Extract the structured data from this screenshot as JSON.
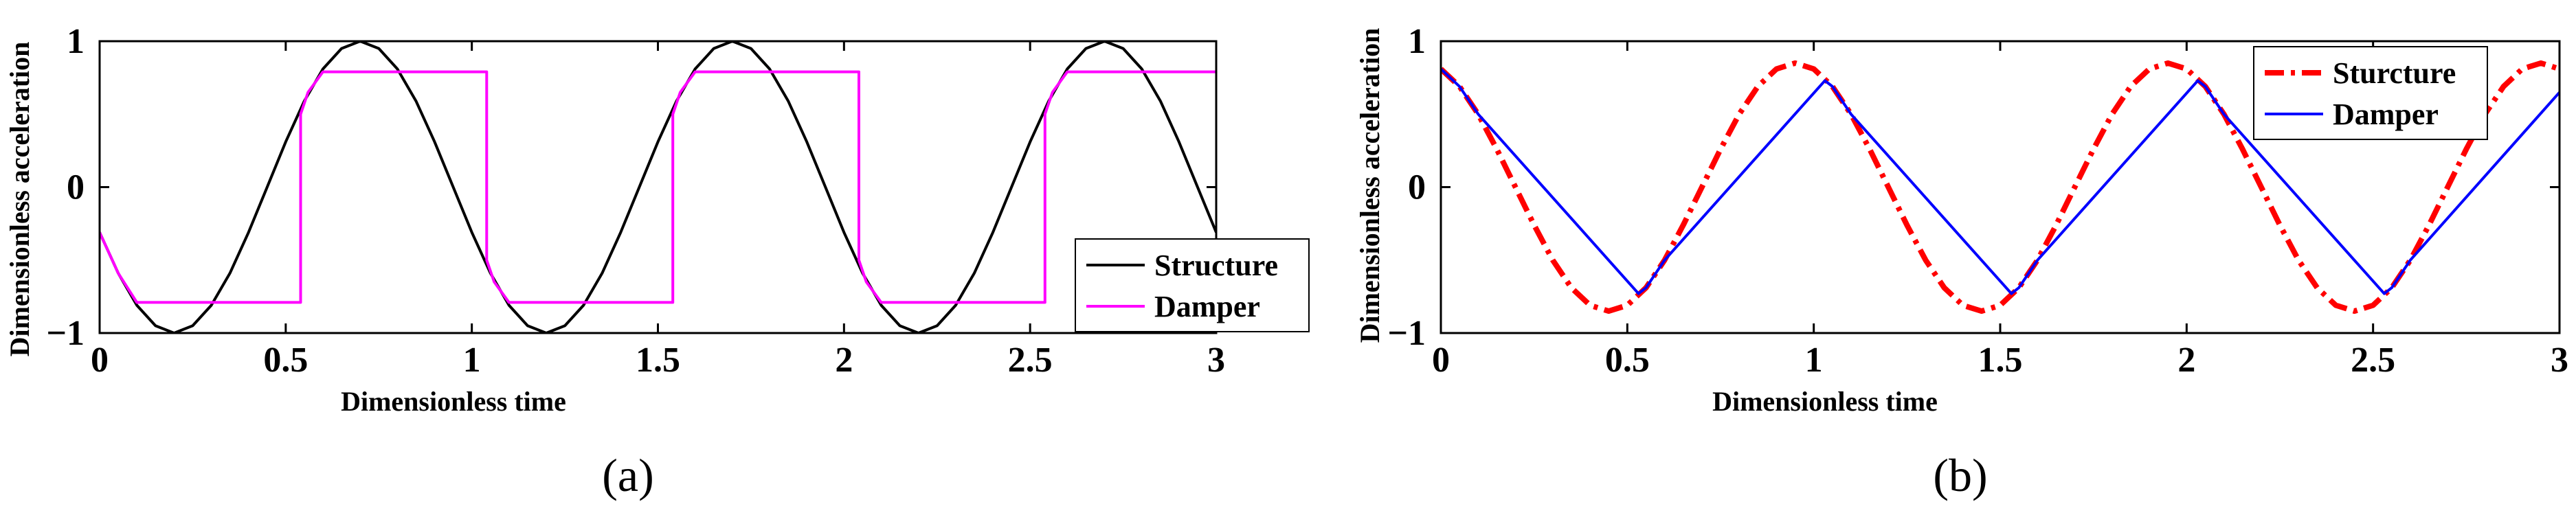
{
  "chart_data": [
    {
      "type": "line",
      "panel_label": "(a)",
      "xlabel": "Dimensionless time",
      "ylabel": "Dimensionless acceleration",
      "xlim": [
        0,
        3
      ],
      "ylim": [
        -1,
        1
      ],
      "xticks": [
        0,
        0.5,
        1,
        1.5,
        2,
        2.5,
        3
      ],
      "xtick_labels": [
        "0",
        "0.5",
        "1",
        "1.5",
        "2",
        "2.5",
        "3"
      ],
      "yticks": [
        -1,
        0,
        1
      ],
      "ytick_labels": [
        "−1",
        "0",
        "1"
      ],
      "grid": false,
      "legend_position": "lower-right",
      "series": [
        {
          "name": "Structure",
          "color": "#000000",
          "dash": "solid",
          "x": [
            0,
            0.05,
            0.1,
            0.15,
            0.2,
            0.25,
            0.3,
            0.35,
            0.4,
            0.45,
            0.5,
            0.55,
            0.6,
            0.65,
            0.7,
            0.75,
            0.8,
            0.85,
            0.9,
            0.95,
            1,
            1.05,
            1.1,
            1.15,
            1.2,
            1.25,
            1.3,
            1.35,
            1.4,
            1.45,
            1.5,
            1.55,
            1.6,
            1.65,
            1.7,
            1.75,
            1.8,
            1.85,
            1.9,
            1.95,
            2,
            2.05,
            2.1,
            2.15,
            2.2,
            2.25,
            2.3,
            2.35,
            2.4,
            2.45,
            2.5,
            2.55,
            2.6,
            2.65,
            2.7,
            2.75,
            2.8,
            2.85,
            2.9,
            2.95,
            3
          ],
          "y": [
            -0.31,
            -0.59,
            -0.81,
            -0.95,
            -1.0,
            -0.95,
            -0.81,
            -0.59,
            -0.31,
            0.0,
            0.31,
            0.59,
            0.81,
            0.95,
            1.0,
            0.95,
            0.81,
            0.59,
            0.31,
            0.0,
            -0.31,
            -0.59,
            -0.81,
            -0.95,
            -1.0,
            -0.95,
            -0.81,
            -0.59,
            -0.31,
            0.0,
            0.31,
            0.59,
            0.81,
            0.95,
            1.0,
            0.95,
            0.81,
            0.59,
            0.31,
            0.0,
            -0.31,
            -0.59,
            -0.81,
            -0.95,
            -1.0,
            -0.95,
            -0.81,
            -0.59,
            -0.31,
            0.0,
            0.31,
            0.59,
            0.81,
            0.95,
            1.0,
            0.95,
            0.81,
            0.59,
            0.31,
            0.0,
            -0.31
          ]
        },
        {
          "name": "Damper",
          "color": "#ff00ff",
          "dash": "solid",
          "x": [
            0,
            0.05,
            0.1,
            0.54,
            0.54,
            0.56,
            0.6,
            1.04,
            1.04,
            1.06,
            1.1,
            1.54,
            1.54,
            1.56,
            1.6,
            2.04,
            2.04,
            2.06,
            2.1,
            2.54,
            2.54,
            2.56,
            2.6,
            3.0
          ],
          "y": [
            -0.31,
            -0.59,
            -0.79,
            -0.79,
            0.5,
            0.65,
            0.79,
            0.79,
            -0.5,
            -0.65,
            -0.79,
            -0.79,
            0.5,
            0.65,
            0.79,
            0.79,
            -0.5,
            -0.65,
            -0.79,
            -0.79,
            0.5,
            0.65,
            0.79,
            0.79
          ]
        }
      ]
    },
    {
      "type": "line",
      "panel_label": "(b)",
      "xlabel": "Dimensionless time",
      "ylabel": "Dimensionless acceleration",
      "xlim": [
        0,
        3
      ],
      "ylim": [
        -1,
        1
      ],
      "xticks": [
        0,
        0.5,
        1,
        1.5,
        2,
        2.5,
        3
      ],
      "xtick_labels": [
        "0",
        "0.5",
        "1",
        "1.5",
        "2",
        "2.5",
        "3"
      ],
      "yticks": [
        -1,
        0,
        1
      ],
      "ytick_labels": [
        "−1",
        "0",
        "1"
      ],
      "grid": false,
      "legend_position": "top-right",
      "series": [
        {
          "name": "Sturcture",
          "color": "#ff0000",
          "dash": "dashdot",
          "x": [
            0,
            0.05,
            0.1,
            0.15,
            0.2,
            0.25,
            0.3,
            0.35,
            0.4,
            0.45,
            0.5,
            0.55,
            0.6,
            0.65,
            0.7,
            0.75,
            0.8,
            0.85,
            0.9,
            0.95,
            1,
            1.05,
            1.1,
            1.15,
            1.2,
            1.25,
            1.3,
            1.35,
            1.4,
            1.45,
            1.5,
            1.55,
            1.6,
            1.65,
            1.7,
            1.75,
            1.8,
            1.85,
            1.9,
            1.95,
            2,
            2.05,
            2.1,
            2.15,
            2.2,
            2.25,
            2.3,
            2.35,
            2.4,
            2.45,
            2.5,
            2.55,
            2.6,
            2.65,
            2.7,
            2.75,
            2.8,
            2.85,
            2.9,
            2.95,
            3
          ],
          "y": [
            0.81,
            0.69,
            0.5,
            0.26,
            0.0,
            -0.26,
            -0.5,
            -0.69,
            -0.81,
            -0.85,
            -0.81,
            -0.69,
            -0.5,
            -0.26,
            0.0,
            0.26,
            0.5,
            0.69,
            0.81,
            0.85,
            0.81,
            0.69,
            0.5,
            0.26,
            0.0,
            -0.26,
            -0.5,
            -0.69,
            -0.81,
            -0.85,
            -0.81,
            -0.69,
            -0.5,
            -0.26,
            0.0,
            0.26,
            0.5,
            0.69,
            0.81,
            0.85,
            0.81,
            0.69,
            0.5,
            0.26,
            0.0,
            -0.26,
            -0.5,
            -0.69,
            -0.81,
            -0.85,
            -0.81,
            -0.69,
            -0.5,
            -0.26,
            0.0,
            0.26,
            0.5,
            0.69,
            0.81,
            0.85,
            0.81
          ]
        },
        {
          "name": "Damper",
          "color": "#0000ff",
          "dash": "solid",
          "x": [
            0,
            0.05,
            0.1,
            0.53,
            0.55,
            0.6,
            1.03,
            1.05,
            1.1,
            1.53,
            1.55,
            1.6,
            2.03,
            2.05,
            2.1,
            2.53,
            2.55,
            2.6,
            3.0
          ],
          "y": [
            0.81,
            0.69,
            0.5,
            -0.73,
            -0.69,
            -0.5,
            0.73,
            0.69,
            0.5,
            -0.73,
            -0.69,
            -0.5,
            0.73,
            0.69,
            0.5,
            -0.73,
            -0.69,
            -0.5,
            0.65
          ]
        }
      ]
    }
  ]
}
